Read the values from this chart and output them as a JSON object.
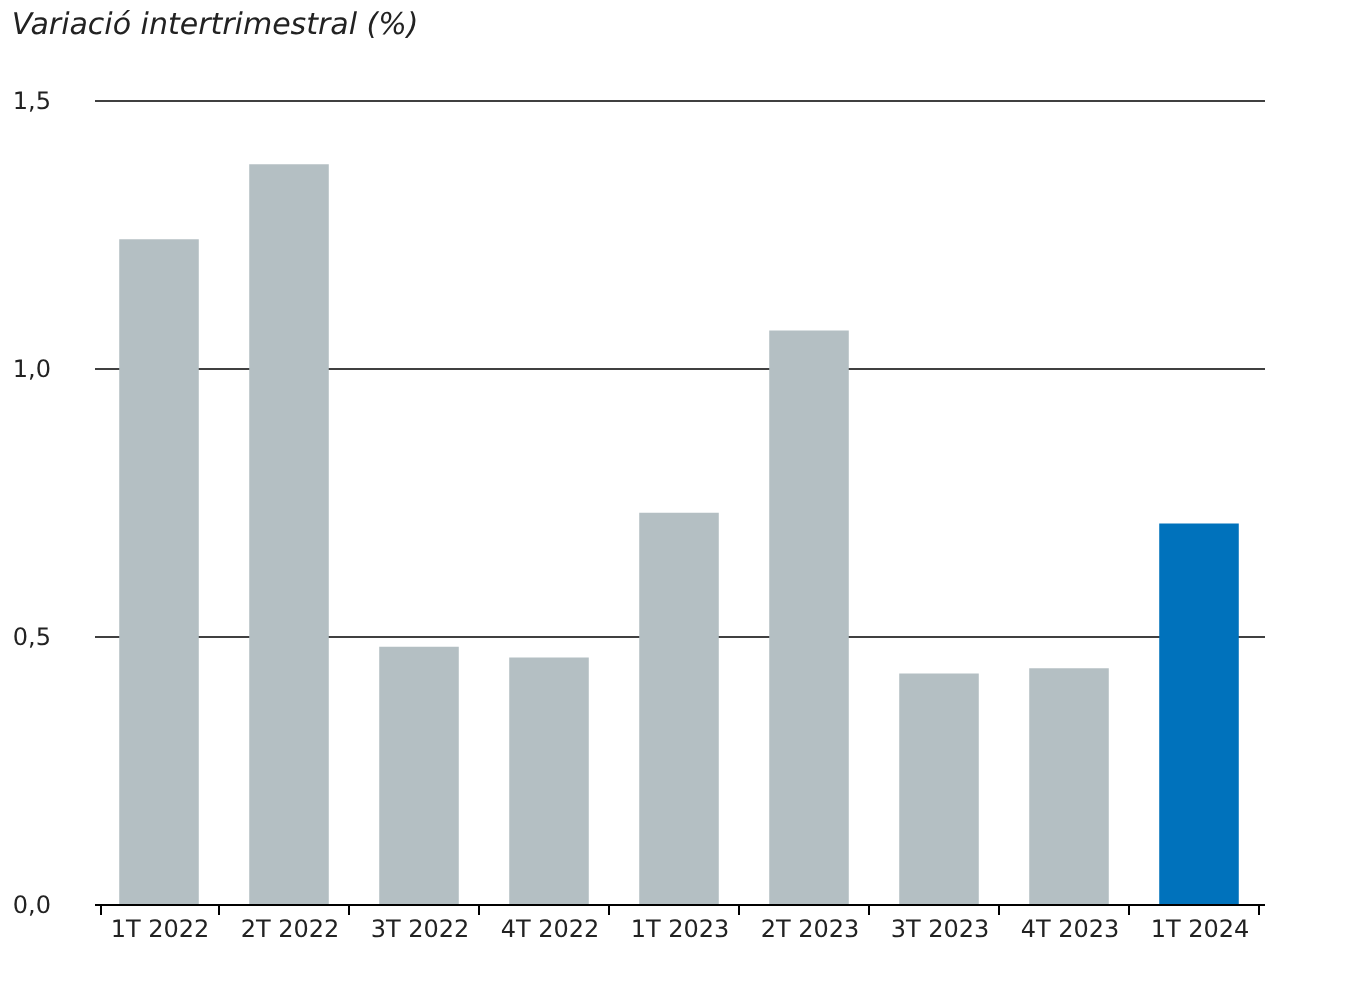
{
  "chart_data": {
    "type": "bar",
    "subtitle": "Variació intertrimestral (%)",
    "categories": [
      "1T 2022",
      "2T 2022",
      "3T 2022",
      "4T 2022",
      "1T 2023",
      "2T 2023",
      "3T 2023",
      "4T 2023",
      "1T 2024"
    ],
    "values": [
      1.24,
      1.38,
      0.48,
      0.46,
      0.73,
      1.07,
      0.43,
      0.44,
      0.71
    ],
    "colors": [
      "#b4bfc3",
      "#b4bfc3",
      "#b4bfc3",
      "#b4bfc3",
      "#b4bfc3",
      "#b4bfc3",
      "#b4bfc3",
      "#b4bfc3",
      "#0072bc"
    ],
    "ylim": [
      0,
      1.5
    ],
    "yticks": [
      {
        "value": 0,
        "label": "0,0"
      },
      {
        "value": 0.5,
        "label": "0,5"
      },
      {
        "value": 1.0,
        "label": "1,0"
      },
      {
        "value": 1.5,
        "label": "1,5"
      }
    ],
    "grid": "y"
  }
}
